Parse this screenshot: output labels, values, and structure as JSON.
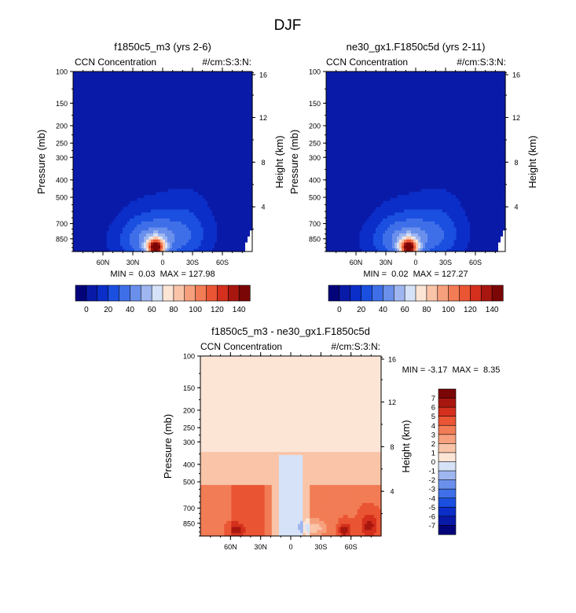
{
  "figure": {
    "title": "DJF"
  },
  "chart_data": [
    {
      "type": "heatmap",
      "title": "f1850c5_m3 (yrs 2-6)",
      "left_label": "CCN Concentration",
      "right_label": "#/cm:S:3:N:",
      "ylabel": "Pressure (mb)",
      "ylabel_right": "Height (km)",
      "x_ticks": [
        "60N",
        "30N",
        "0",
        "30S",
        "60S"
      ],
      "y_ticks": [
        "100",
        "150",
        "200",
        "250",
        "300",
        "400",
        "500",
        "700",
        "850"
      ],
      "height_ticks": [
        "16",
        "12",
        "8",
        "4"
      ],
      "stats": "MIN =  0.03  MAX = 127.98",
      "field": "ccn_a",
      "colorbar_labels": [
        "0",
        "20",
        "40",
        "60",
        "80",
        "100",
        "120",
        "140"
      ],
      "ylim_mb": [
        100,
        1000
      ],
      "xlim_lat": [
        90,
        -90
      ]
    },
    {
      "type": "heatmap",
      "title": "ne30_gx1.F1850c5d (yrs 2-11)",
      "left_label": "CCN Concentration",
      "right_label": "#/cm:S:3:N:",
      "ylabel": "Pressure (mb)",
      "ylabel_right": "Height (km)",
      "x_ticks": [
        "60N",
        "30N",
        "0",
        "30S",
        "60S"
      ],
      "y_ticks": [
        "100",
        "150",
        "200",
        "250",
        "300",
        "400",
        "500",
        "700",
        "850"
      ],
      "height_ticks": [
        "16",
        "12",
        "8",
        "4"
      ],
      "stats": "MIN =  0.02  MAX = 127.27",
      "field": "ccn_b",
      "colorbar_labels": [
        "0",
        "20",
        "40",
        "60",
        "80",
        "100",
        "120",
        "140"
      ],
      "ylim_mb": [
        100,
        1000
      ],
      "xlim_lat": [
        90,
        -90
      ]
    },
    {
      "type": "heatmap",
      "title": "f1850c5_m3 - ne30_gx1.F1850c5d",
      "left_label": "CCN Concentration",
      "right_label": "#/cm:S:3:N:",
      "ylabel": "Pressure (mb)",
      "ylabel_right": "Height (km)",
      "x_ticks": [
        "60N",
        "30N",
        "0",
        "30S",
        "60S"
      ],
      "y_ticks": [
        "100",
        "150",
        "200",
        "250",
        "300",
        "400",
        "500",
        "700",
        "850"
      ],
      "height_ticks": [
        "16",
        "12",
        "8",
        "4"
      ],
      "stats": "MIN = -3.17  MAX =  8.35",
      "field": "difference",
      "colorbar_labels": [
        "7",
        "6",
        "5",
        "4",
        "3",
        "2",
        "1",
        "0",
        "-1",
        "-2",
        "-3",
        "-4",
        "-5",
        "-6",
        "-7"
      ],
      "ylim_mb": [
        100,
        1000
      ],
      "xlim_lat": [
        90,
        -90
      ]
    }
  ],
  "colors": {
    "ccn_levels": [
      "#03037a",
      "#0a1aa8",
      "#0b2ec8",
      "#1a4fe0",
      "#3f6fe8",
      "#6a90ec",
      "#9fb6f0",
      "#d6e2f7",
      "#fde5d6",
      "#f9c4a8",
      "#f6a07e",
      "#f27c55",
      "#ea5533",
      "#d4301d",
      "#a8170f",
      "#7a0606"
    ],
    "diff_levels": [
      "#03037a",
      "#0a1aa8",
      "#0b2ec8",
      "#1a4fe0",
      "#3f6fe8",
      "#6a90ec",
      "#9fb6f0",
      "#d6e2f7",
      "#fde5d6",
      "#f9c4a8",
      "#f6a07e",
      "#f27c55",
      "#ea5533",
      "#d4301d",
      "#a8170f",
      "#7a0606"
    ],
    "ccn_background": "#0b2ec8",
    "diff_background": "#fde5d6"
  }
}
